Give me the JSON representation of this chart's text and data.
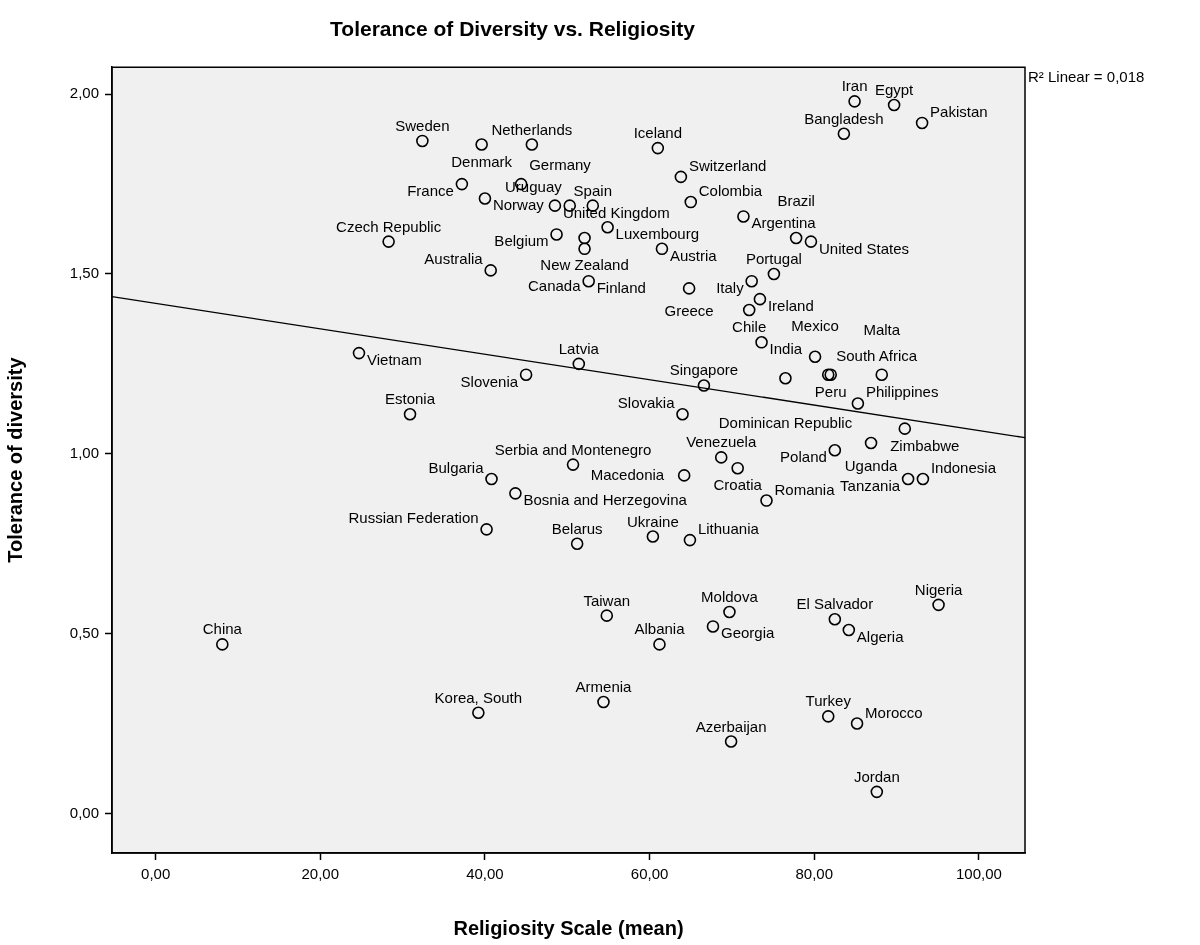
{
  "chart_data": {
    "type": "scatter",
    "title": "Tolerance of Diversity vs. Religiosity",
    "xlabel": "Religiosity Scale (mean)",
    "ylabel": "Tolerance of diversity",
    "xlim": [
      -5.3,
      105.6
    ],
    "ylim": [
      -0.11,
      2.075
    ],
    "xticks": [
      {
        "value": 0,
        "label": "0,00"
      },
      {
        "value": 20,
        "label": "20,00"
      },
      {
        "value": 40,
        "label": "40,00"
      },
      {
        "value": 60,
        "label": "60,00"
      },
      {
        "value": 80,
        "label": "80,00"
      },
      {
        "value": 100,
        "label": "100,00"
      }
    ],
    "yticks": [
      {
        "value": 0,
        "label": "0,00"
      },
      {
        "value": 0.5,
        "label": "0,50"
      },
      {
        "value": 1,
        "label": "1,00"
      },
      {
        "value": 1.5,
        "label": "1,50"
      },
      {
        "value": 2,
        "label": "2,00"
      }
    ],
    "grid": false,
    "legend": false,
    "series": [
      {
        "type": "scatter",
        "color": "#000000",
        "marker": "circle",
        "x": [
          32.4,
          39.6,
          45.7,
          54.9,
          61.0,
          65.0,
          63.8,
          53.1,
          37.2,
          44.4,
          40.0,
          48.7,
          28.3,
          52.1,
          40.7,
          48.5,
          50.3,
          52.6,
          52.1,
          61.5,
          71.4,
          79.6,
          75.1,
          77.8,
          72.4,
          73.4,
          64.8,
          72.1,
          73.6,
          84.9,
          89.7,
          93.1,
          83.6,
          24.7,
          51.4,
          45.0,
          30.9,
          76.5,
          66.6,
          64.0,
          85.3,
          81.7,
          80.1,
          82.0,
          88.2,
          91.0,
          86.9,
          82.5,
          68.7,
          70.7,
          74.2,
          91.4,
          93.2,
          50.7,
          40.8,
          43.7,
          64.2,
          40.2,
          64.9,
          60.4,
          51.2,
          8.1,
          39.2,
          54.8,
          69.7,
          67.7,
          61.2,
          82.5,
          84.2,
          95.1,
          54.4,
          69.9,
          81.7,
          85.2,
          87.6
        ],
        "values": [
          1.87,
          1.86,
          1.86,
          1.63,
          1.85,
          1.7,
          1.77,
          1.69,
          1.75,
          1.75,
          1.71,
          1.61,
          1.59,
          1.6,
          1.51,
          1.69,
          1.69,
          1.48,
          1.57,
          1.57,
          1.66,
          1.59,
          1.5,
          1.6,
          1.48,
          1.43,
          1.46,
          1.4,
          1.31,
          1.98,
          1.97,
          1.92,
          1.89,
          1.28,
          1.25,
          1.22,
          1.11,
          1.21,
          1.19,
          1.11,
          1.14,
          1.22,
          1.27,
          1.22,
          1.22,
          1.07,
          1.03,
          1.01,
          0.99,
          0.96,
          0.87,
          0.93,
          0.93,
          0.97,
          0.93,
          0.89,
          0.94,
          0.79,
          0.76,
          0.77,
          0.75,
          0.47,
          0.28,
          0.55,
          0.56,
          0.52,
          0.47,
          0.54,
          0.51,
          0.58,
          0.31,
          0.2,
          0.27,
          0.25,
          0.06
        ]
      },
      {
        "type": "line",
        "color": "#000000",
        "marker": "none",
        "line_style": "solid",
        "x": [
          -5.3,
          105.6
        ],
        "values": [
          1.437,
          1.045
        ]
      }
    ],
    "annotations": [
      "R² Linear = 0,018",
      {
        "text": "Sweden",
        "x": 32.4,
        "y": 1.87
      },
      {
        "text": "Denmark",
        "x": 39.6,
        "y": 1.86
      },
      {
        "text": "Netherlands",
        "x": 45.7,
        "y": 1.86
      },
      {
        "text": "Luxembourg",
        "x": 54.9,
        "y": 1.63
      },
      {
        "text": "Iceland",
        "x": 61.0,
        "y": 1.85
      },
      {
        "text": "Colombia",
        "x": 65.0,
        "y": 1.7
      },
      {
        "text": "Switzerland",
        "x": 63.8,
        "y": 1.77
      },
      {
        "text": "Spain",
        "x": 53.1,
        "y": 1.69
      },
      {
        "text": "France",
        "x": 37.2,
        "y": 1.75
      },
      {
        "text": "Germany",
        "x": 44.4,
        "y": 1.75
      },
      {
        "text": "Norway",
        "x": 40.0,
        "y": 1.71
      },
      {
        "text": "Belgium",
        "x": 48.7,
        "y": 1.61
      },
      {
        "text": "Czech Republic",
        "x": 28.3,
        "y": 1.59
      },
      {
        "text": "New Zealand",
        "x": 52.1,
        "y": 1.6
      },
      {
        "text": "Australia",
        "x": 40.7,
        "y": 1.51
      },
      {
        "text": "United Kingdom",
        "x": 48.5,
        "y": 1.69
      },
      {
        "text": "Uruguay",
        "x": 50.3,
        "y": 1.69
      },
      {
        "text": "Finland",
        "x": 52.6,
        "y": 1.48
      },
      {
        "text": "Canada",
        "x": 52.1,
        "y": 1.57
      },
      {
        "text": "Austria",
        "x": 61.5,
        "y": 1.57
      },
      {
        "text": "Argentina",
        "x": 71.4,
        "y": 1.66
      },
      {
        "text": "United States",
        "x": 79.6,
        "y": 1.59
      },
      {
        "text": "Portugal",
        "x": 75.1,
        "y": 1.5
      },
      {
        "text": "Brazil",
        "x": 77.8,
        "y": 1.6
      },
      {
        "text": "Italy",
        "x": 72.4,
        "y": 1.48
      },
      {
        "text": "Ireland",
        "x": 73.4,
        "y": 1.43
      },
      {
        "text": "Greece",
        "x": 64.8,
        "y": 1.46
      },
      {
        "text": "Chile",
        "x": 72.1,
        "y": 1.4
      },
      {
        "text": "India",
        "x": 73.6,
        "y": 1.31
      },
      {
        "text": "Iran",
        "x": 84.9,
        "y": 1.98
      },
      {
        "text": "Egypt",
        "x": 89.7,
        "y": 1.97
      },
      {
        "text": "Pakistan",
        "x": 93.1,
        "y": 1.92
      },
      {
        "text": "Bangladesh",
        "x": 83.6,
        "y": 1.89
      },
      {
        "text": "Vietnam",
        "x": 24.7,
        "y": 1.28
      },
      {
        "text": "Latvia",
        "x": 51.4,
        "y": 1.25
      },
      {
        "text": "Slovenia",
        "x": 45.0,
        "y": 1.22
      },
      {
        "text": "Estonia",
        "x": 30.9,
        "y": 1.11
      },
      {
        "text": "Dominican Republic",
        "x": 76.5,
        "y": 1.21
      },
      {
        "text": "Singapore",
        "x": 66.6,
        "y": 1.19
      },
      {
        "text": "Slovakia",
        "x": 64.0,
        "y": 1.11
      },
      {
        "text": "Philippines",
        "x": 85.3,
        "y": 1.14
      },
      {
        "text": "South Africa",
        "x": 81.7,
        "y": 1.22
      },
      {
        "text": "Mexico",
        "x": 80.1,
        "y": 1.27
      },
      {
        "text": "Peru",
        "x": 82.0,
        "y": 1.22
      },
      {
        "text": "Malta",
        "x": 88.2,
        "y": 1.22
      },
      {
        "text": "Zimbabwe",
        "x": 91.0,
        "y": 1.07
      },
      {
        "text": "Uganda",
        "x": 86.9,
        "y": 1.03
      },
      {
        "text": "Poland",
        "x": 82.5,
        "y": 1.01
      },
      {
        "text": "Venezuela",
        "x": 68.7,
        "y": 0.99
      },
      {
        "text": "Croatia",
        "x": 70.7,
        "y": 0.96
      },
      {
        "text": "Romania",
        "x": 74.2,
        "y": 0.87
      },
      {
        "text": "Tanzania",
        "x": 91.4,
        "y": 0.93
      },
      {
        "text": "Indonesia",
        "x": 93.2,
        "y": 0.93
      },
      {
        "text": "Serbia and Montenegro",
        "x": 50.7,
        "y": 0.97
      },
      {
        "text": "Bulgaria",
        "x": 40.8,
        "y": 0.93
      },
      {
        "text": "Bosnia and Herzegovina",
        "x": 43.7,
        "y": 0.89
      },
      {
        "text": "Macedonia",
        "x": 64.2,
        "y": 0.94
      },
      {
        "text": "Russian Federation",
        "x": 40.2,
        "y": 0.79
      },
      {
        "text": "Lithuania",
        "x": 64.9,
        "y": 0.76
      },
      {
        "text": "Ukraine",
        "x": 60.4,
        "y": 0.77
      },
      {
        "text": "Belarus",
        "x": 51.2,
        "y": 0.75
      },
      {
        "text": "China",
        "x": 8.1,
        "y": 0.47
      },
      {
        "text": "Korea, South",
        "x": 39.2,
        "y": 0.28
      },
      {
        "text": "Taiwan",
        "x": 54.8,
        "y": 0.55
      },
      {
        "text": "Moldova",
        "x": 69.7,
        "y": 0.56
      },
      {
        "text": "Georgia",
        "x": 67.7,
        "y": 0.52
      },
      {
        "text": "Albania",
        "x": 61.2,
        "y": 0.47
      },
      {
        "text": "El Salvador",
        "x": 82.5,
        "y": 0.54
      },
      {
        "text": "Algeria",
        "x": 84.2,
        "y": 0.51
      },
      {
        "text": "Nigeria",
        "x": 95.1,
        "y": 0.58
      },
      {
        "text": "Armenia",
        "x": 54.4,
        "y": 0.31
      },
      {
        "text": "Azerbaijan",
        "x": 69.9,
        "y": 0.2
      },
      {
        "text": "Turkey",
        "x": 81.7,
        "y": 0.27
      },
      {
        "text": "Morocco",
        "x": 85.2,
        "y": 0.25
      },
      {
        "text": "Jordan",
        "x": 87.6,
        "y": 0.06
      }
    ]
  }
}
